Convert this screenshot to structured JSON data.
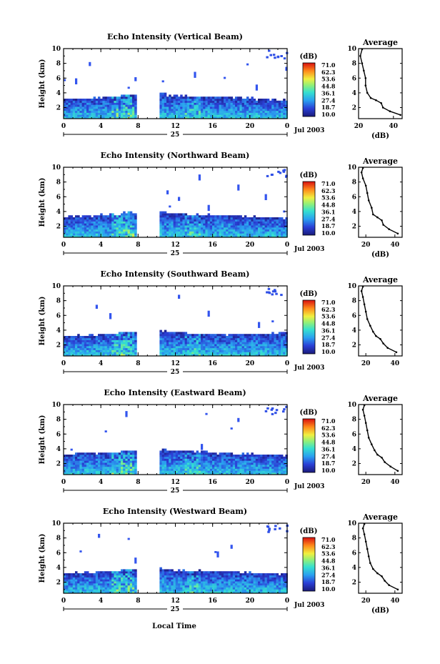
{
  "figure": {
    "bottom_label": "Local Time"
  },
  "chart_data": [
    {
      "type": "heatmap",
      "title": "Echo Intensity (Vertical Beam)",
      "ylabel": "Height (km)",
      "xlabel": "",
      "x_ticks": [
        "0",
        "4",
        "8",
        "12",
        "16",
        "20",
        "0"
      ],
      "day_label": "25",
      "date_label": "Jul 2003",
      "xlim": [
        0,
        24
      ],
      "ylim": [
        0.5,
        10
      ],
      "y_ticks": [
        "2",
        "4",
        "6",
        "8",
        "10"
      ],
      "data_gap_hours": [
        7.8,
        10.3
      ],
      "boundary_layer_top_km": [
        3.0,
        3.2,
        3.3,
        3.6,
        3.8,
        3.5,
        3.4,
        3.3,
        3.2,
        3.0,
        2.9
      ],
      "colorbar": {
        "unit": "(dB)",
        "labels": [
          "71.0",
          "62.3",
          "53.6",
          "44.8",
          "36.1",
          "27.4",
          "18.7",
          "10.0"
        ]
      },
      "average_profile": {
        "title": "Average",
        "xlabel": "(dB)",
        "xlim": [
          20,
          45
        ],
        "x_ticks": [
          "20",
          "40"
        ],
        "ylim": [
          0.5,
          10
        ],
        "y_ticks": [
          "2",
          "4",
          "6",
          "8",
          "10"
        ],
        "profile": [
          [
            44,
            1.0
          ],
          [
            38,
            1.5
          ],
          [
            34,
            2.0
          ],
          [
            33,
            2.6
          ],
          [
            30,
            3.0
          ],
          [
            27,
            3.3
          ],
          [
            25,
            4.0
          ],
          [
            24,
            5.0
          ],
          [
            24,
            6.0
          ],
          [
            23,
            7.0
          ],
          [
            22,
            8.0
          ],
          [
            21,
            9.0
          ],
          [
            22,
            9.9
          ]
        ]
      }
    },
    {
      "type": "heatmap",
      "title": "Echo Intensity (Northward Beam)",
      "ylabel": "Height (km)",
      "xlabel": "",
      "x_ticks": [
        "0",
        "4",
        "8",
        "12",
        "16",
        "20",
        "0"
      ],
      "day_label": "25",
      "date_label": "Jul 2003",
      "xlim": [
        0,
        24
      ],
      "ylim": [
        0.5,
        10
      ],
      "y_ticks": [
        "2",
        "4",
        "6",
        "8",
        "10"
      ],
      "data_gap_hours": [
        7.8,
        10.3
      ],
      "boundary_layer_top_km": [
        3.2,
        3.3,
        3.5,
        3.7,
        3.9,
        3.6,
        3.4,
        3.3,
        3.2,
        3.1,
        3.0
      ],
      "colorbar": {
        "unit": "(dB)",
        "labels": [
          "71.0",
          "62.3",
          "53.6",
          "44.8",
          "36.1",
          "27.4",
          "18.7",
          "10.0"
        ]
      },
      "average_profile": {
        "title": "Average",
        "xlabel": "(dB)",
        "xlim": [
          15,
          45
        ],
        "x_ticks": [
          "20",
          "40"
        ],
        "ylim": [
          0.5,
          10
        ],
        "y_ticks": [
          "2",
          "4",
          "6",
          "8",
          "10"
        ],
        "profile": [
          [
            42,
            1.0
          ],
          [
            36,
            1.6
          ],
          [
            32,
            2.2
          ],
          [
            31,
            2.8
          ],
          [
            28,
            3.2
          ],
          [
            25,
            3.6
          ],
          [
            24,
            4.5
          ],
          [
            22,
            5.5
          ],
          [
            21,
            6.5
          ],
          [
            20,
            7.5
          ],
          [
            18,
            8.5
          ],
          [
            17,
            9.3
          ],
          [
            18,
            9.9
          ]
        ]
      }
    },
    {
      "type": "heatmap",
      "title": "Echo Intensity (Southward Beam)",
      "ylabel": "Height (km)",
      "xlabel": "",
      "x_ticks": [
        "0",
        "4",
        "8",
        "12",
        "16",
        "20",
        "0"
      ],
      "day_label": "25",
      "date_label": "Jul 2003",
      "xlim": [
        0,
        24
      ],
      "ylim": [
        0.5,
        10
      ],
      "y_ticks": [
        "2",
        "4",
        "6",
        "8",
        "10"
      ],
      "data_gap_hours": [
        7.8,
        10.3
      ],
      "boundary_layer_top_km": [
        3.1,
        3.2,
        3.4,
        3.6,
        3.8,
        3.6,
        3.4,
        3.3,
        3.3,
        3.4,
        3.5
      ],
      "colorbar": {
        "unit": "(dB)",
        "labels": [
          "71.0",
          "62.3",
          "53.6",
          "44.8",
          "36.1",
          "27.4",
          "18.7",
          "10.0"
        ]
      },
      "average_profile": {
        "title": "Average",
        "xlabel": "",
        "xlim": [
          15,
          45
        ],
        "x_ticks": [
          "20",
          "40"
        ],
        "ylim": [
          0.5,
          10
        ],
        "y_ticks": [
          "2",
          "4",
          "6",
          "8",
          "10"
        ],
        "profile": [
          [
            41,
            1.0
          ],
          [
            35,
            1.6
          ],
          [
            32,
            2.2
          ],
          [
            30,
            2.8
          ],
          [
            27,
            3.2
          ],
          [
            25,
            3.8
          ],
          [
            23,
            4.6
          ],
          [
            21,
            5.5
          ],
          [
            20,
            6.5
          ],
          [
            19,
            7.5
          ],
          [
            18,
            8.5
          ],
          [
            17,
            9.3
          ],
          [
            18,
            9.9
          ]
        ]
      }
    },
    {
      "type": "heatmap",
      "title": "Echo Intensity (Eastward Beam)",
      "ylabel": "Height (km)",
      "xlabel": "",
      "x_ticks": [
        "0",
        "4",
        "8",
        "12",
        "16",
        "20",
        "0"
      ],
      "day_label": "25",
      "date_label": "Jul 2003",
      "xlim": [
        0,
        24
      ],
      "ylim": [
        0.5,
        10
      ],
      "y_ticks": [
        "2",
        "4",
        "6",
        "8",
        "10"
      ],
      "data_gap_hours": [
        7.8,
        10.3
      ],
      "boundary_layer_top_km": [
        3.1,
        3.3,
        3.4,
        3.6,
        3.8,
        3.6,
        3.5,
        3.3,
        3.2,
        3.1,
        3.0
      ],
      "colorbar": {
        "unit": "(dB)",
        "labels": [
          "71.0",
          "62.3",
          "53.6",
          "44.8",
          "36.1",
          "27.4",
          "18.7",
          "10.0"
        ]
      },
      "average_profile": {
        "title": "Average",
        "xlabel": "",
        "xlim": [
          15,
          45
        ],
        "x_ticks": [
          "20",
          "40"
        ],
        "ylim": [
          0.5,
          10
        ],
        "y_ticks": [
          "2",
          "4",
          "6",
          "8",
          "10"
        ],
        "profile": [
          [
            42,
            1.0
          ],
          [
            37,
            1.6
          ],
          [
            33,
            2.2
          ],
          [
            31,
            2.8
          ],
          [
            28,
            3.2
          ],
          [
            26,
            3.8
          ],
          [
            24,
            4.6
          ],
          [
            22,
            5.5
          ],
          [
            21,
            6.5
          ],
          [
            20,
            7.5
          ],
          [
            19,
            8.5
          ],
          [
            18,
            9.3
          ],
          [
            19,
            9.9
          ]
        ]
      }
    },
    {
      "type": "heatmap",
      "title": "Echo Intensity (Westward Beam)",
      "ylabel": "Height (km)",
      "xlabel": "Local Time",
      "x_ticks": [
        "0",
        "4",
        "8",
        "12",
        "16",
        "20",
        "0"
      ],
      "day_label": "25",
      "date_label": "Jul 2003",
      "xlim": [
        0,
        24
      ],
      "ylim": [
        0.5,
        10
      ],
      "y_ticks": [
        "2",
        "4",
        "6",
        "8",
        "10"
      ],
      "data_gap_hours": [
        7.8,
        10.3
      ],
      "boundary_layer_top_km": [
        3.1,
        3.2,
        3.4,
        3.6,
        3.7,
        3.5,
        3.4,
        3.3,
        3.2,
        3.1,
        3.0
      ],
      "colorbar": {
        "unit": "(dB)",
        "labels": [
          "71.0",
          "62.3",
          "53.6",
          "44.8",
          "36.1",
          "27.4",
          "18.7",
          "10.0"
        ]
      },
      "average_profile": {
        "title": "Average",
        "xlabel": "(dB)",
        "xlim": [
          15,
          45
        ],
        "x_ticks": [
          "20",
          "40"
        ],
        "ylim": [
          0.5,
          10
        ],
        "y_ticks": [
          "2",
          "4",
          "6",
          "8",
          "10"
        ],
        "profile": [
          [
            42,
            1.0
          ],
          [
            36,
            1.6
          ],
          [
            33,
            2.2
          ],
          [
            31,
            2.8
          ],
          [
            28,
            3.2
          ],
          [
            25,
            3.8
          ],
          [
            23,
            4.6
          ],
          [
            22,
            5.5
          ],
          [
            21,
            6.5
          ],
          [
            20,
            7.5
          ],
          [
            19,
            8.5
          ],
          [
            18,
            9.3
          ],
          [
            19,
            9.9
          ]
        ]
      }
    }
  ]
}
